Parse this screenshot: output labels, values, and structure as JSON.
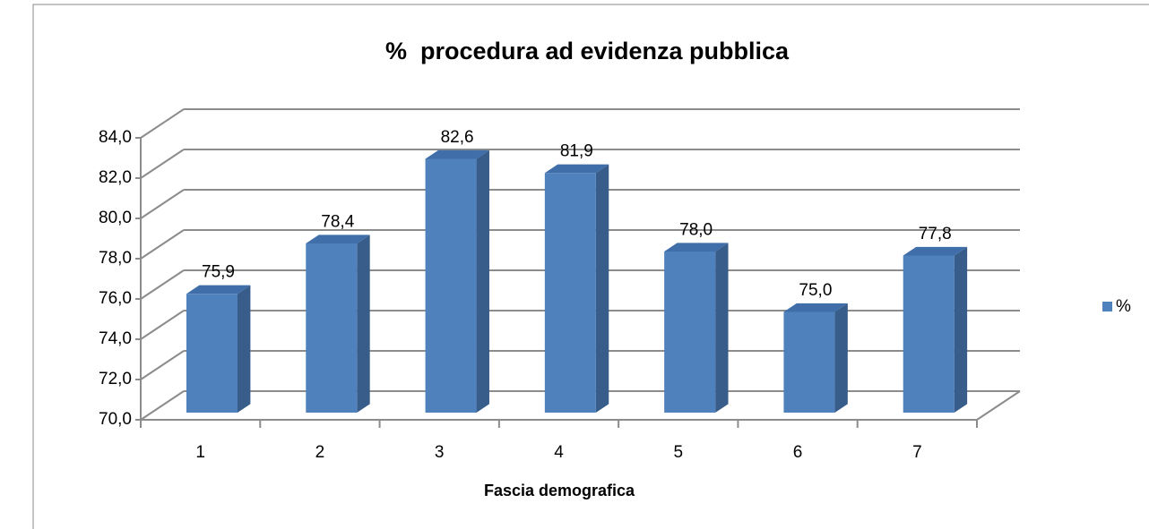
{
  "chart_data": {
    "type": "bar3d",
    "title": "%  procedura ad evidenza pubblica",
    "x_label": "Fascia demografica",
    "categories": [
      "1",
      "2",
      "3",
      "4",
      "5",
      "6",
      "7"
    ],
    "series": [
      {
        "name": "%",
        "color": "#4f81bd",
        "values": [
          75.9,
          78.4,
          82.6,
          81.9,
          78.0,
          75.0,
          77.8
        ],
        "value_labels": [
          "75,9",
          "78,4",
          "82,6",
          "81,9",
          "78,0",
          "75,0",
          "77,8"
        ]
      }
    ],
    "ylim": [
      70,
      84
    ],
    "yticks": [
      {
        "value": 70,
        "label": "70,0"
      },
      {
        "value": 72,
        "label": "72,0"
      },
      {
        "value": 74,
        "label": "74,0"
      },
      {
        "value": 76,
        "label": "76,0"
      },
      {
        "value": 78,
        "label": "78,0"
      },
      {
        "value": 80,
        "label": "80,0"
      },
      {
        "value": 82,
        "label": "82,0"
      },
      {
        "value": 84,
        "label": "84,0"
      }
    ],
    "grid": true,
    "legend": "right"
  }
}
